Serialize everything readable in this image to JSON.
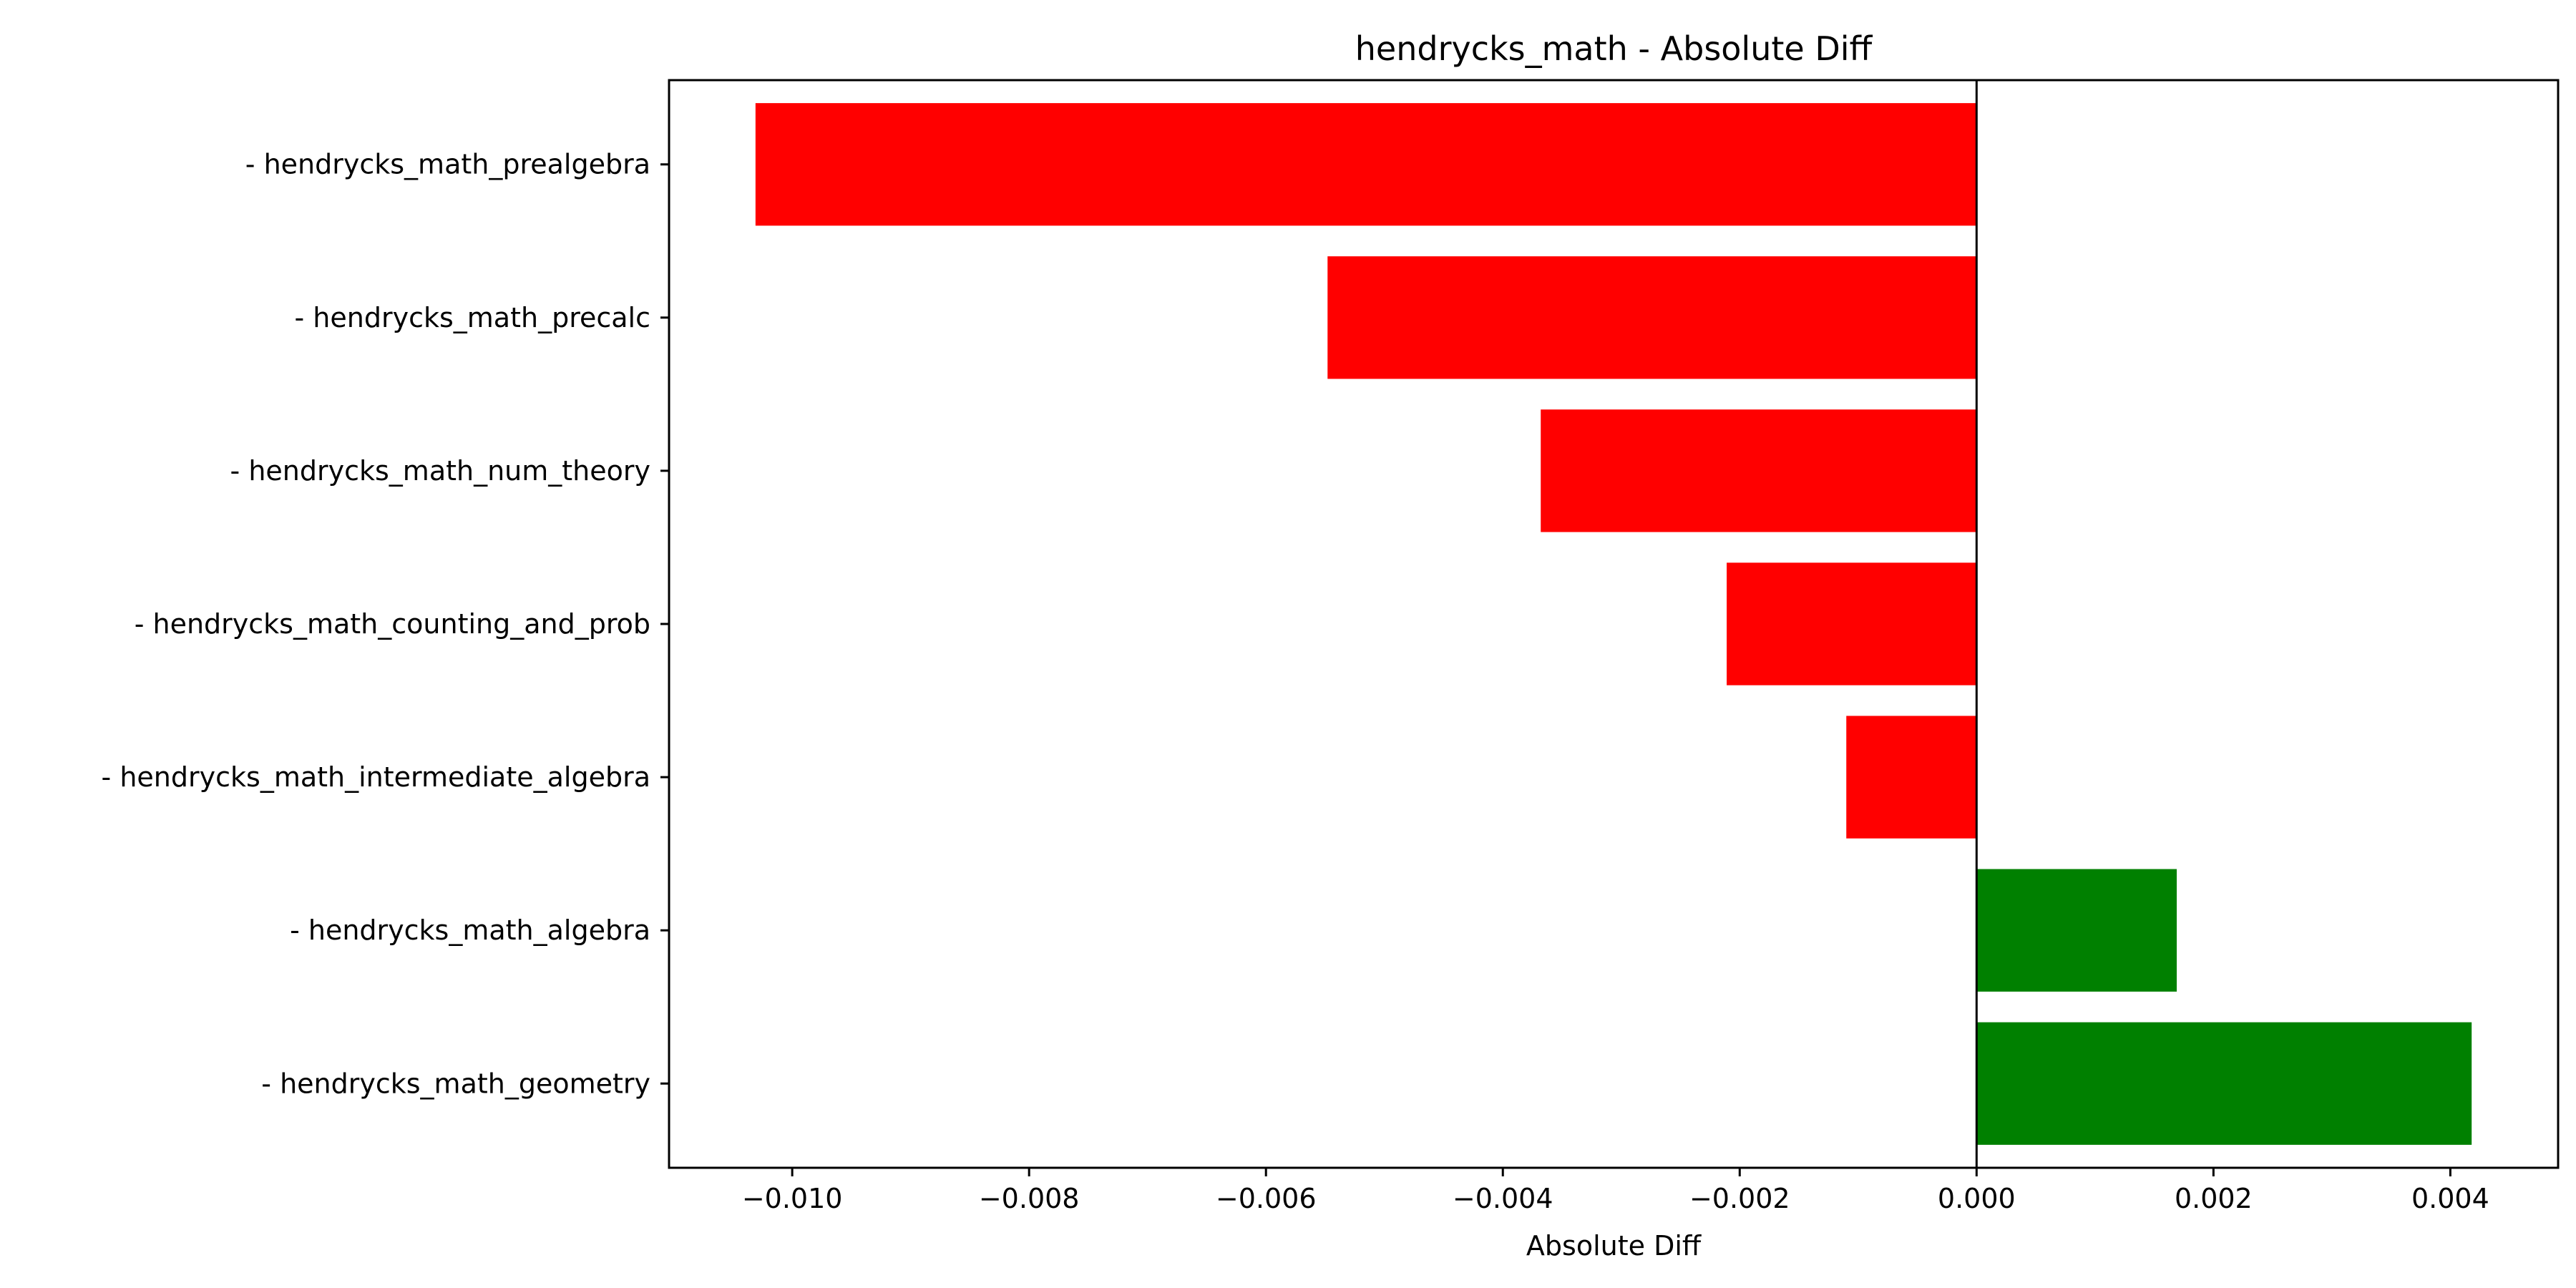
{
  "chart_data": {
    "type": "bar",
    "orientation": "horizontal",
    "title": "hendrycks_math - Absolute Diff",
    "xlabel": "Absolute Diff",
    "ylabel": "",
    "categories": [
      "- hendrycks_math_prealgebra",
      "- hendrycks_math_precalc",
      "- hendrycks_math_num_theory",
      "- hendrycks_math_counting_and_prob",
      "- hendrycks_math_intermediate_algebra",
      "- hendrycks_math_algebra",
      "- hendrycks_math_geometry"
    ],
    "values": [
      -0.01031,
      -0.00548,
      -0.00368,
      -0.00211,
      -0.0011,
      0.00169,
      0.00418
    ],
    "xlim": [
      -0.01104,
      0.00491
    ],
    "xticks": [
      -0.01,
      -0.008,
      -0.006,
      -0.004,
      -0.002,
      0.0,
      0.002,
      0.004
    ],
    "xtick_labels": [
      "−0.010",
      "−0.008",
      "−0.006",
      "−0.004",
      "−0.002",
      "0.000",
      "0.002",
      "0.004"
    ],
    "zero_line": true,
    "grid": false,
    "colors": {
      "negative": "#ff0000",
      "positive": "#008000",
      "axis": "#000000"
    }
  }
}
